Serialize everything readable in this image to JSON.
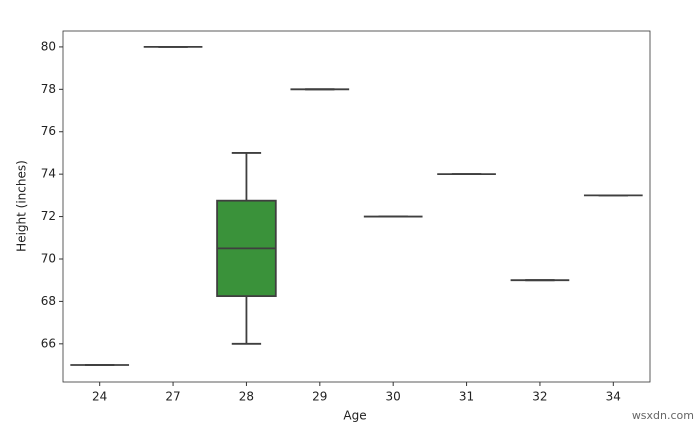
{
  "chart_data": {
    "type": "box",
    "x_label": "Age",
    "y_label": "Height (inches)",
    "categories": [
      "24",
      "27",
      "28",
      "29",
      "30",
      "31",
      "32",
      "34"
    ],
    "low": [
      65,
      80,
      66,
      78,
      72,
      74,
      69,
      73
    ],
    "q1": [
      65,
      80,
      68.25,
      78,
      72,
      74,
      69,
      73
    ],
    "median": [
      65,
      80,
      70.5,
      78,
      72,
      74,
      69,
      73
    ],
    "q3": [
      65,
      80,
      72.75,
      78,
      72,
      74,
      69,
      73
    ],
    "high": [
      65,
      80,
      75,
      78,
      72,
      74,
      69,
      73
    ],
    "colors": [
      "#3274a1",
      "#e1812c",
      "#3a923a",
      "#c03d3e",
      "#9372b2",
      "#845b53",
      "#d684bd",
      "#7f7f7f"
    ],
    "ylim": [
      64.2,
      80.75
    ],
    "yticks": [
      66,
      68,
      70,
      72,
      74,
      76,
      78,
      80
    ],
    "watermark": "wsxdn.com"
  }
}
